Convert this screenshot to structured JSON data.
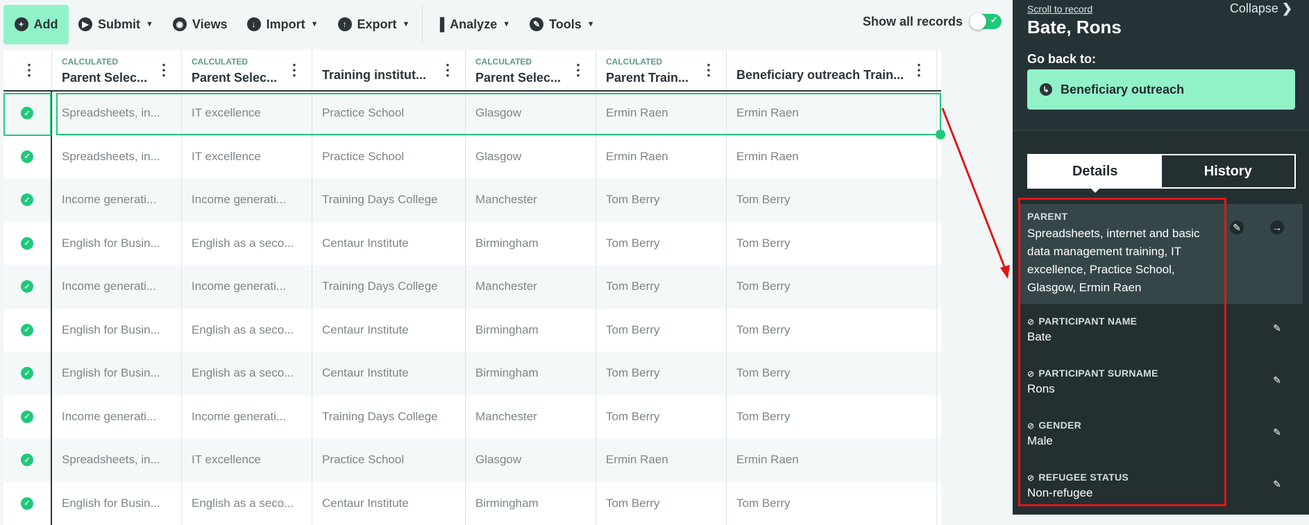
{
  "toolbar": {
    "add": "Add",
    "submit": "Submit",
    "views": "Views",
    "import": "Import",
    "export": "Export",
    "analyze": "Analyze",
    "tools": "Tools",
    "show_all": "Show all records",
    "show_all_on": true
  },
  "table": {
    "columns": [
      {
        "calc": "CALCULATED",
        "title": "Parent Selec..."
      },
      {
        "calc": "CALCULATED",
        "title": "Parent Selec..."
      },
      {
        "calc": "",
        "title": "Training institut..."
      },
      {
        "calc": "CALCULATED",
        "title": "Parent Selec..."
      },
      {
        "calc": "CALCULATED",
        "title": "Parent Train..."
      },
      {
        "calc": "",
        "title": "Beneficiary outreach Train..."
      }
    ],
    "rows": [
      [
        "Spreadsheets, in...",
        "IT excellence",
        "Practice School",
        "Glasgow",
        "Ermin Raen",
        "Ermin Raen"
      ],
      [
        "Spreadsheets, in...",
        "IT excellence",
        "Practice School",
        "Glasgow",
        "Ermin Raen",
        "Ermin Raen"
      ],
      [
        "Income generati...",
        "Income generati...",
        "Training Days College",
        "Manchester",
        "Tom Berry",
        "Tom Berry"
      ],
      [
        "English for Busin...",
        "English as a seco...",
        "Centaur Institute",
        "Birmingham",
        "Tom Berry",
        "Tom Berry"
      ],
      [
        "Income generati...",
        "Income generati...",
        "Training Days College",
        "Manchester",
        "Tom Berry",
        "Tom Berry"
      ],
      [
        "English for Busin...",
        "English as a seco...",
        "Centaur Institute",
        "Birmingham",
        "Tom Berry",
        "Tom Berry"
      ],
      [
        "English for Busin...",
        "English as a seco...",
        "Centaur Institute",
        "Birmingham",
        "Tom Berry",
        "Tom Berry"
      ],
      [
        "Income generati...",
        "Income generati...",
        "Training Days College",
        "Manchester",
        "Tom Berry",
        "Tom Berry"
      ],
      [
        "Spreadsheets, in...",
        "IT excellence",
        "Practice School",
        "Glasgow",
        "Ermin Raen",
        "Ermin Raen"
      ],
      [
        "English for Busin...",
        "English as a seco...",
        "Centaur Institute",
        "Birmingham",
        "Tom Berry",
        "Tom Berry"
      ]
    ]
  },
  "panel": {
    "scroll_to": "Scroll to record",
    "collapse": "Collapse",
    "title": "Bate, Rons",
    "go_back": "Go back to:",
    "go_back_target": "Beneficiary outreach",
    "tabs": [
      "Details",
      "History"
    ],
    "parent": {
      "label": "PARENT",
      "value": "Spreadsheets, internet and basic data management training, IT excellence, Practice School, Glasgow, Ermin Raen"
    },
    "fields": [
      {
        "label": "PARTICIPANT NAME",
        "value": "Bate"
      },
      {
        "label": "PARTICIPANT SURNAME",
        "value": "Rons"
      },
      {
        "label": "GENDER",
        "value": "Male"
      },
      {
        "label": "REFUGEE STATUS",
        "value": "Non-refugee"
      }
    ]
  },
  "colors": {
    "accent": "#1fc97a",
    "button_bg": "#91f2c9",
    "panel_bg": "#242f31",
    "annotation": "#e11616"
  }
}
